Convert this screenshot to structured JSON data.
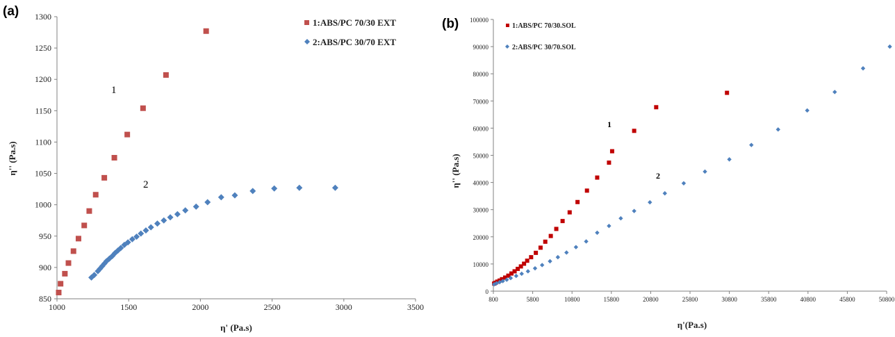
{
  "chart_data": [
    {
      "type": "scatter",
      "panel_label": "(a)",
      "xlabel": "η' (Pa.s)",
      "ylabel": "η'' (Pa.s)",
      "xlim": [
        1000,
        3500
      ],
      "ylim": [
        850,
        1300
      ],
      "x_ticks": [
        "1000",
        "1500",
        "2000",
        "2500",
        "3000",
        "3500"
      ],
      "y_ticks": [
        "850",
        "900",
        "950",
        "1000",
        "1050",
        "1100",
        "1150",
        "1200",
        "1250",
        "1300"
      ],
      "grid": false,
      "legend_position": "top-right",
      "annotations": [
        "1",
        "2"
      ],
      "series": [
        {
          "name": "1:ABS/PC 70/30 EXT",
          "marker": "square",
          "color": "#c0504d",
          "points": [
            [
              1012,
              860
            ],
            [
              1025,
              874
            ],
            [
              1055,
              890
            ],
            [
              1080,
              907
            ],
            [
              1115,
              926
            ],
            [
              1150,
              946
            ],
            [
              1190,
              967
            ],
            [
              1225,
              990
            ],
            [
              1270,
              1016
            ],
            [
              1330,
              1043
            ],
            [
              1400,
              1075
            ],
            [
              1490,
              1112
            ],
            [
              1600,
              1154
            ],
            [
              1760,
              1207
            ],
            [
              2040,
              1277
            ]
          ]
        },
        {
          "name": "2:ABS/PC 30/70 EXT",
          "marker": "diamond",
          "color": "#4f81bd",
          "points": [
            [
              1240,
              884
            ],
            [
              1260,
              888
            ],
            [
              1285,
              894
            ],
            [
              1300,
              898
            ],
            [
              1315,
              902
            ],
            [
              1330,
              906
            ],
            [
              1345,
              910
            ],
            [
              1365,
              914
            ],
            [
              1385,
              918
            ],
            [
              1405,
              923
            ],
            [
              1425,
              927
            ],
            [
              1445,
              931
            ],
            [
              1470,
              936
            ],
            [
              1495,
              940
            ],
            [
              1525,
              945
            ],
            [
              1555,
              949
            ],
            [
              1585,
              954
            ],
            [
              1620,
              959
            ],
            [
              1655,
              964
            ],
            [
              1700,
              970
            ],
            [
              1745,
              975
            ],
            [
              1790,
              980
            ],
            [
              1840,
              985
            ],
            [
              1895,
              991
            ],
            [
              1970,
              997
            ],
            [
              2050,
              1004
            ],
            [
              2145,
              1012
            ],
            [
              2240,
              1015
            ],
            [
              2365,
              1022
            ],
            [
              2515,
              1026
            ],
            [
              2690,
              1027
            ],
            [
              2940,
              1027
            ]
          ]
        }
      ]
    },
    {
      "type": "scatter",
      "panel_label": "(b)",
      "xlabel": "η'(Pa.s)",
      "ylabel": "η'' (Pa.s)",
      "xlim": [
        800,
        50800
      ],
      "ylim": [
        0,
        100000
      ],
      "x_ticks": [
        "800",
        "5800",
        "10800",
        "15800",
        "20800",
        "25800",
        "30800",
        "35800",
        "40800",
        "45800",
        "50800"
      ],
      "y_ticks": [
        "0",
        "10000",
        "20000",
        "30000",
        "40000",
        "50000",
        "60000",
        "70000",
        "80000",
        "90000",
        "100000"
      ],
      "grid": false,
      "legend_position": "top-left",
      "annotations": [
        "1",
        "2"
      ],
      "series": [
        {
          "name": "1:ABS/PC 70/30.SOL",
          "marker": "square",
          "color": "#c00000",
          "points": [
            [
              900,
              2800
            ],
            [
              1100,
              3100
            ],
            [
              1300,
              3500
            ],
            [
              1600,
              3900
            ],
            [
              1900,
              4400
            ],
            [
              2300,
              5000
            ],
            [
              2700,
              5700
            ],
            [
              3100,
              6500
            ],
            [
              3500,
              7300
            ],
            [
              3900,
              8200
            ],
            [
              4300,
              9100
            ],
            [
              4700,
              10100
            ],
            [
              5100,
              11200
            ],
            [
              5600,
              12500
            ],
            [
              6200,
              14100
            ],
            [
              6800,
              16000
            ],
            [
              7400,
              18200
            ],
            [
              8100,
              20300
            ],
            [
              8800,
              22900
            ],
            [
              9600,
              25800
            ],
            [
              10500,
              29000
            ],
            [
              11500,
              32800
            ],
            [
              12700,
              37000
            ],
            [
              14000,
              41800
            ],
            [
              15500,
              47300
            ],
            [
              15900,
              51500
            ],
            [
              18700,
              59000
            ],
            [
              21500,
              67700
            ],
            [
              30500,
              73000
            ]
          ]
        },
        {
          "name": "2:ABS/PC 30/70.SOL",
          "marker": "diamond",
          "color": "#4f81bd",
          "points": [
            [
              900,
              2500
            ],
            [
              1200,
              2900
            ],
            [
              1600,
              3300
            ],
            [
              2000,
              3700
            ],
            [
              2500,
              4200
            ],
            [
              3000,
              4800
            ],
            [
              3700,
              5600
            ],
            [
              4400,
              6400
            ],
            [
              5200,
              7300
            ],
            [
              6100,
              8400
            ],
            [
              7000,
              9600
            ],
            [
              8000,
              11000
            ],
            [
              9000,
              12500
            ],
            [
              10100,
              14200
            ],
            [
              11300,
              16200
            ],
            [
              12600,
              18300
            ],
            [
              14000,
              21500
            ],
            [
              15500,
              24000
            ],
            [
              17000,
              26800
            ],
            [
              18700,
              29500
            ],
            [
              20700,
              32700
            ],
            [
              22600,
              36000
            ],
            [
              25000,
              39700
            ],
            [
              27700,
              44000
            ],
            [
              30800,
              48500
            ],
            [
              33600,
              53800
            ],
            [
              37000,
              59500
            ],
            [
              40700,
              66500
            ],
            [
              44200,
              73300
            ],
            [
              47800,
              82000
            ],
            [
              51200,
              90000
            ]
          ]
        }
      ]
    }
  ]
}
